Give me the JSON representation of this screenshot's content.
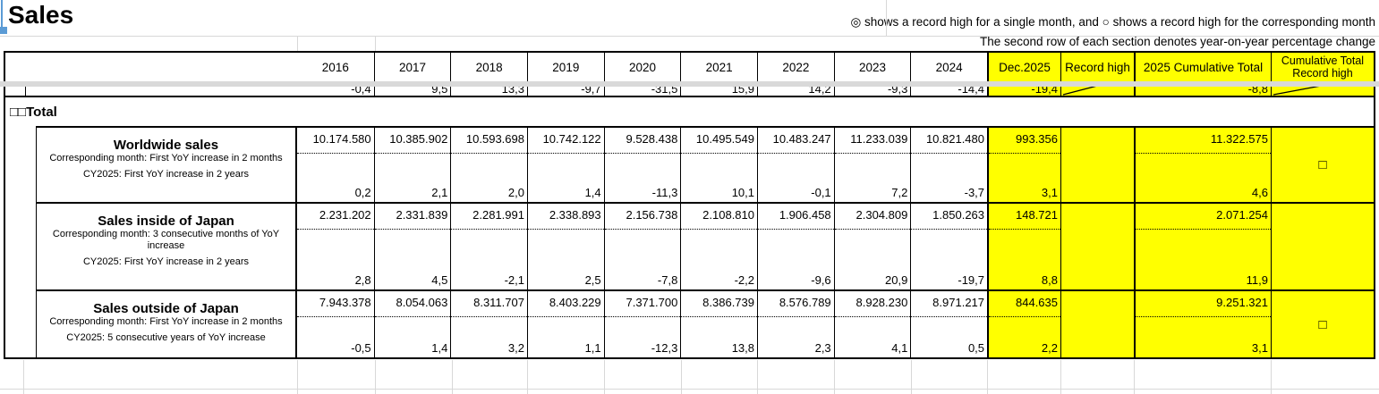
{
  "title": "Sales",
  "legend": {
    "line1": "◎ shows a record high for a single month, and ○ shows a record high for the corresponding month",
    "line2": "The second row of each section denotes year-on-year percentage change"
  },
  "table": {
    "years": [
      "2016",
      "2017",
      "2018",
      "2019",
      "2020",
      "2021",
      "2022",
      "2023",
      "2024"
    ],
    "col_dec": "Dec.2025",
    "col_record": "Record high",
    "col_cum": "2025 Cumulative Total",
    "col_cum_record_l1": "Cumulative Total",
    "col_cum_record_l2": "Record high",
    "clipped_row": {
      "yoy": [
        "-0,4",
        "9,5",
        "13,3",
        "-9,7",
        "-31,5",
        "15,9",
        "14,2",
        "-9,3",
        "-14,4"
      ],
      "dec_yoy": "-19,4",
      "cum_yoy": "-8,8"
    },
    "section_title": "□□Total",
    "rows": [
      {
        "label": "Worldwide sales",
        "note1": "Corresponding month: First YoY increase in 2 months",
        "note2": "CY2025: First YoY increase in 2 years",
        "values": [
          "10.174.580",
          "10.385.902",
          "10.593.698",
          "10.742.122",
          "9.528.438",
          "10.495.549",
          "10.483.247",
          "11.233.039",
          "10.821.480"
        ],
        "yoy": [
          "0,2",
          "2,1",
          "2,0",
          "1,4",
          "-11,3",
          "10,1",
          "-0,1",
          "7,2",
          "-3,7"
        ],
        "dec_value": "993.356",
        "dec_yoy": "3,1",
        "record_high": "",
        "cum_value": "11.322.575",
        "cum_yoy": "4,6",
        "cum_record_high": "□"
      },
      {
        "label": "Sales inside of Japan",
        "note1": "Corresponding month: 3 consecutive months of YoY increase",
        "note2": "CY2025:  First YoY increase in 2 years",
        "values": [
          "2.231.202",
          "2.331.839",
          "2.281.991",
          "2.338.893",
          "2.156.738",
          "2.108.810",
          "1.906.458",
          "2.304.809",
          "1.850.263"
        ],
        "yoy": [
          "2,8",
          "4,5",
          "-2,1",
          "2,5",
          "-7,8",
          "-2,2",
          "-9,6",
          "20,9",
          "-19,7"
        ],
        "dec_value": "148.721",
        "dec_yoy": "8,8",
        "record_high": "",
        "cum_value": "2.071.254",
        "cum_yoy": "11,9",
        "cum_record_high": ""
      },
      {
        "label": "Sales outside of Japan",
        "note1": "Corresponding month: First YoY increase in 2 months",
        "note2": "CY2025: 5 consecutive years of YoY increase",
        "values": [
          "7.943.378",
          "8.054.063",
          "8.311.707",
          "8.403.229",
          "7.371.700",
          "8.386.739",
          "8.576.789",
          "8.928.230",
          "8.971.217"
        ],
        "yoy": [
          "-0,5",
          "1,4",
          "3,2",
          "1,1",
          "-12,3",
          "13,8",
          "2,3",
          "4,1",
          "0,5"
        ],
        "dec_value": "844.635",
        "dec_yoy": "2,2",
        "record_high": "",
        "cum_value": "9.251.321",
        "cum_yoy": "3,1",
        "cum_record_high": "□"
      }
    ]
  }
}
